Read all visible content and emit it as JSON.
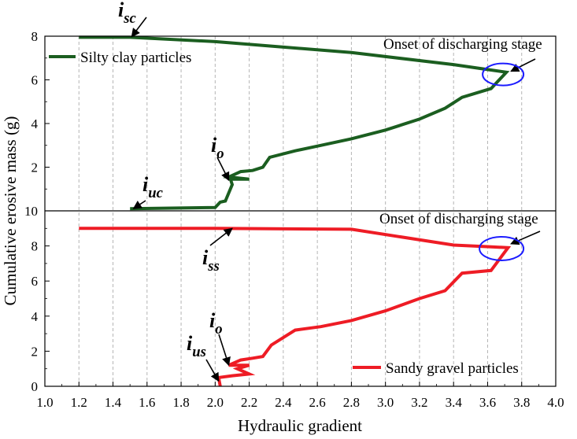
{
  "chart_data": [
    {
      "type": "line",
      "panel": "top",
      "xlabel": "Hydraulic gradient",
      "ylabel": "Cumulative erosive mass (g)",
      "xlim": [
        1.0,
        4.0
      ],
      "ylim": [
        0,
        8
      ],
      "yticks": [
        2,
        4,
        6,
        8
      ],
      "grid": "vertical dashed",
      "legend_position": "top-left",
      "color": "#1b5e20",
      "series": [
        {
          "name": "Silty clay particles",
          "x": [
            1.5,
            2.0,
            2.03,
            2.06,
            2.1,
            2.09,
            2.2,
            2.08,
            2.15,
            2.22,
            2.28,
            2.32,
            2.47,
            2.62,
            2.8,
            3.0,
            3.2,
            3.35,
            3.45,
            3.62,
            3.71,
            3.62,
            3.4,
            2.8,
            2.0,
            1.5,
            1.2
          ],
          "y": [
            0.1,
            0.15,
            0.4,
            0.45,
            1.2,
            1.45,
            1.45,
            1.55,
            1.8,
            1.85,
            2.0,
            2.45,
            2.75,
            3.0,
            3.3,
            3.7,
            4.2,
            4.7,
            5.2,
            5.6,
            6.35,
            6.45,
            6.7,
            7.25,
            7.75,
            7.95,
            7.95
          ]
        }
      ],
      "annotations": [
        {
          "label": "i",
          "sub": "sc",
          "x": 1.51,
          "y": 7.98
        },
        {
          "label": "i",
          "sub": "uc",
          "x": 1.52,
          "y": 0.1
        },
        {
          "label": "i",
          "sub": "o",
          "x": 2.08,
          "y": 1.4
        },
        {
          "label": "Onset of discharging stage",
          "x": 3.7,
          "y": 6.25
        }
      ]
    },
    {
      "type": "line",
      "panel": "bottom",
      "xlabel": "Hydraulic gradient",
      "ylabel": "Cumulative erosive mass (g)",
      "xlim": [
        1.0,
        4.0
      ],
      "ylim": [
        0,
        10
      ],
      "yticks": [
        0,
        2,
        4,
        6,
        8,
        10
      ],
      "grid": "vertical dashed",
      "legend_position": "bottom-right",
      "color": "#ee1c25",
      "series": [
        {
          "name": "Sandy gravel particles",
          "x": [
            2.03,
            2.02,
            2.1,
            2.2,
            2.13,
            2.2,
            2.08,
            2.15,
            2.22,
            2.28,
            2.33,
            2.47,
            2.62,
            2.8,
            3.0,
            3.2,
            3.35,
            3.45,
            3.62,
            3.72,
            3.62,
            3.4,
            2.8,
            2.0,
            1.2
          ],
          "y": [
            0.0,
            0.5,
            0.6,
            0.7,
            1.0,
            1.2,
            1.2,
            1.5,
            1.6,
            1.7,
            2.35,
            3.2,
            3.4,
            3.75,
            4.3,
            5.0,
            5.45,
            6.45,
            6.6,
            7.9,
            7.95,
            8.05,
            8.95,
            9.0,
            9.0
          ]
        }
      ],
      "annotations": [
        {
          "label": "i",
          "sub": "ss",
          "x": 1.55,
          "y": 9.0
        },
        {
          "label": "i",
          "sub": "us",
          "x": 2.02,
          "y": 0.3
        },
        {
          "label": "i",
          "sub": "o",
          "x": 2.08,
          "y": 1.2
        },
        {
          "label": "Onset of discharging stage",
          "x": 3.7,
          "y": 7.85
        }
      ]
    }
  ],
  "xticks": [
    "1.0",
    "1.2",
    "1.4",
    "1.6",
    "1.8",
    "2.0",
    "2.2",
    "2.4",
    "2.6",
    "2.8",
    "3.0",
    "3.2",
    "3.4",
    "3.6",
    "3.8",
    "4.0"
  ]
}
